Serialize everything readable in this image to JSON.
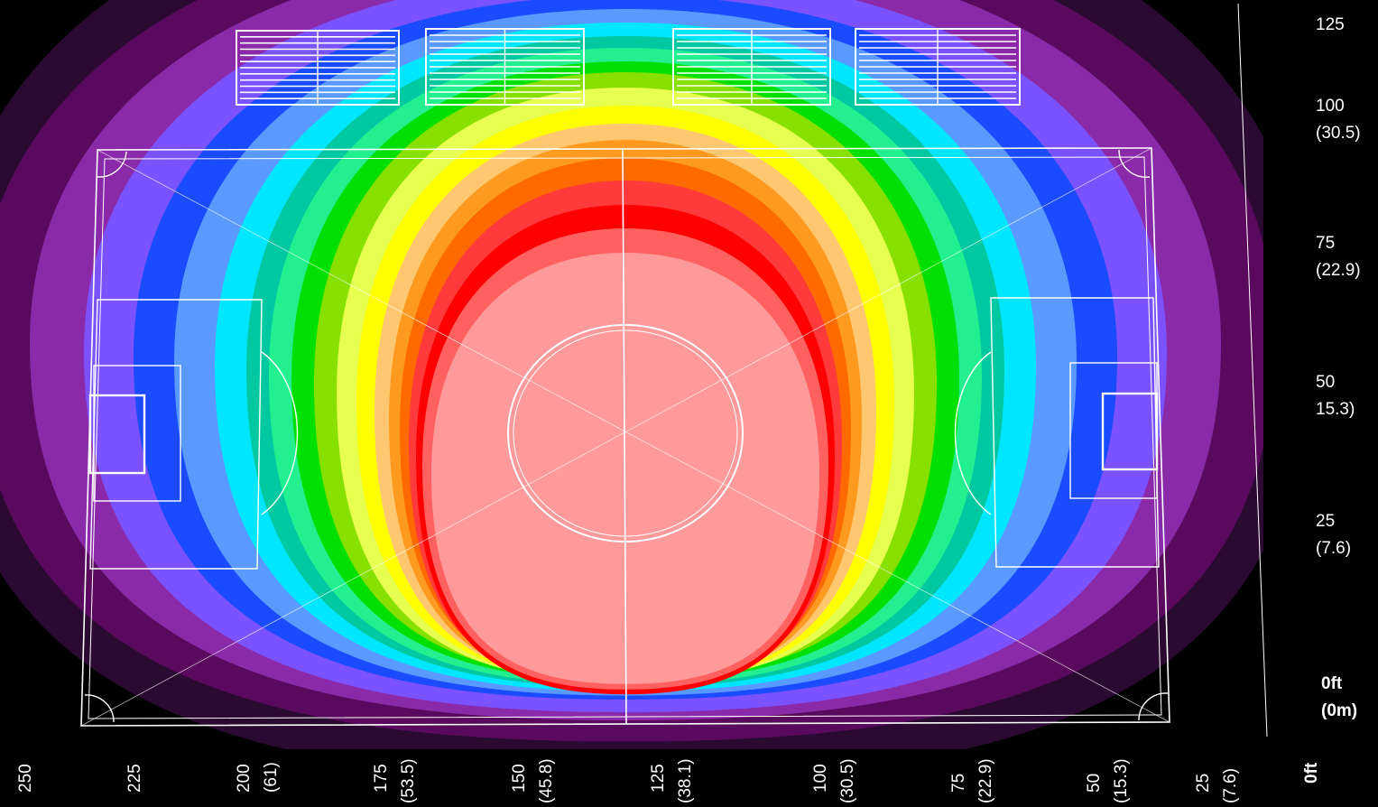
{
  "right_axis": {
    "ticks": [
      {
        "ft": "125",
        "m": ""
      },
      {
        "ft": "100",
        "m": "(30.5)"
      },
      {
        "ft": "75",
        "m": "(22.9)"
      },
      {
        "ft": "50",
        "m": "15.3)"
      },
      {
        "ft": "25",
        "m": "(7.6)"
      },
      {
        "ft": "0ft",
        "m": "(0m)"
      }
    ]
  },
  "bottom_axis": {
    "ticks": [
      {
        "ft": "250",
        "m": ""
      },
      {
        "ft": "225",
        "m": ""
      },
      {
        "ft": "200",
        "m": "(61)"
      },
      {
        "ft": "175",
        "m": "(53.5)"
      },
      {
        "ft": "150",
        "m": "(45.8)"
      },
      {
        "ft": "125",
        "m": "(38.1)"
      },
      {
        "ft": "100",
        "m": "(30.5)"
      },
      {
        "ft": "75",
        "m": "(22.9)"
      },
      {
        "ft": "50",
        "m": "(15.3)"
      },
      {
        "ft": "25",
        "m": "(7.6)"
      },
      {
        "ft": "0ft",
        "m": ""
      }
    ]
  },
  "colors": {
    "background": "#000000",
    "level_1": "#2a0a30",
    "level_2": "#5a0a5e",
    "level_3": "#8a2aa8",
    "level_4": "#7a52ff",
    "level_5": "#1a4bff",
    "level_6": "#5a9aff",
    "level_7": "#00e6ff",
    "level_8": "#00c8a0",
    "level_9": "#22f090",
    "level_10": "#00e000",
    "level_11": "#88e000",
    "level_12": "#e6ff50",
    "level_13": "#ffff00",
    "level_14": "#ffc870",
    "level_15": "#ff9a20",
    "level_16": "#ff6a00",
    "level_17": "#ff3a3a",
    "level_18": "#ff0000",
    "level_19": "#ff6060",
    "level_20": "#ff9a9a",
    "outline": "#ffffff"
  }
}
